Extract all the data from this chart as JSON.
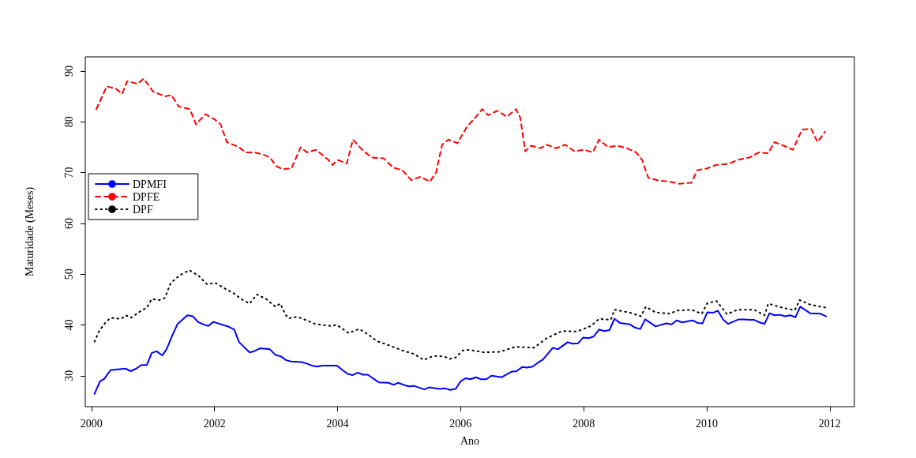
{
  "chart_data": {
    "type": "line",
    "xlabel": "Ano",
    "ylabel": "Maturidade (Meses)",
    "xlim": [
      1999.9,
      2012.4
    ],
    "ylim": [
      23.9,
      92.8
    ],
    "xticks": [
      2000,
      2002,
      2004,
      2006,
      2008,
      2010,
      2012
    ],
    "yticks": [
      30,
      40,
      50,
      60,
      70,
      80,
      90
    ],
    "grid": false,
    "legend": "top left",
    "marker": "none",
    "series": [
      {
        "name": "DPMFI",
        "color": "#0000ff",
        "line_style": "solid",
        "x": [
          2000.05,
          2000.14,
          2000.21,
          2000.31,
          2000.55,
          2000.64,
          2000.73,
          2000.81,
          2000.9,
          2000.98,
          2001.06,
          2001.15,
          2001.22,
          2001.31,
          2001.4,
          2001.56,
          2001.65,
          2001.73,
          2001.82,
          2001.9,
          2001.98,
          2002.24,
          2002.32,
          2002.4,
          2002.57,
          2002.64,
          2002.74,
          2002.9,
          2002.99,
          2003.08,
          2003.16,
          2003.24,
          2003.41,
          2003.5,
          2003.58,
          2003.67,
          2003.75,
          2003.99,
          2004.07,
          2004.16,
          2004.24,
          2004.33,
          2004.41,
          2004.49,
          2004.67,
          2004.83,
          2004.91,
          2004.98,
          2005.15,
          2005.24,
          2005.41,
          2005.49,
          2005.66,
          2005.75,
          2005.83,
          2005.92,
          2006.0,
          2006.08,
          2006.16,
          2006.25,
          2006.33,
          2006.42,
          2006.5,
          2006.67,
          2006.83,
          2006.91,
          2007.0,
          2007.08,
          2007.17,
          2007.25,
          2007.34,
          2007.5,
          2007.58,
          2007.74,
          2007.82,
          2007.91,
          2007.99,
          2008.08,
          2008.16,
          2008.25,
          2008.33,
          2008.42,
          2008.5,
          2008.59,
          2008.75,
          2008.83,
          2008.92,
          2009.0,
          2009.17,
          2009.34,
          2009.43,
          2009.51,
          2009.6,
          2009.77,
          2009.85,
          2009.93,
          2010.01,
          2010.1,
          2010.18,
          2010.27,
          2010.35,
          2010.52,
          2010.61,
          2010.69,
          2010.77,
          2010.86,
          2010.94,
          2011.02,
          2011.1,
          2011.19,
          2011.27,
          2011.36,
          2011.44,
          2011.52,
          2011.68,
          2011.85,
          2011.94
        ],
        "values": [
          26.4,
          28.9,
          29.4,
          31.1,
          31.4,
          30.9,
          31.4,
          32.1,
          32.1,
          34.5,
          34.8,
          34.0,
          35.2,
          37.8,
          40.2,
          41.9,
          41.7,
          40.6,
          40.1,
          39.8,
          40.6,
          39.6,
          39.1,
          36.6,
          34.6,
          34.8,
          35.4,
          35.2,
          34.1,
          33.8,
          33.1,
          32.8,
          32.7,
          32.4,
          32.0,
          31.8,
          32.0,
          32.0,
          31.2,
          30.4,
          30.1,
          30.6,
          30.2,
          30.2,
          28.7,
          28.6,
          28.2,
          28.6,
          27.9,
          28.0,
          27.3,
          27.7,
          27.4,
          27.5,
          27.2,
          27.4,
          28.9,
          29.5,
          29.3,
          29.7,
          29.3,
          29.3,
          30.0,
          29.7,
          30.8,
          30.9,
          31.7,
          31.6,
          31.8,
          32.5,
          33.2,
          35.5,
          35.2,
          36.6,
          36.3,
          36.4,
          37.5,
          37.4,
          37.7,
          39.1,
          38.8,
          39.0,
          41.2,
          40.4,
          40.1,
          39.5,
          39.2,
          41.1,
          39.7,
          40.3,
          40.1,
          40.9,
          40.5,
          40.9,
          40.4,
          40.3,
          42.5,
          42.4,
          42.8,
          41.0,
          40.2,
          41.1,
          41.1,
          41.0,
          41.0,
          40.5,
          40.2,
          42.3,
          41.9,
          42.0,
          41.7,
          41.9,
          41.5,
          43.6,
          42.3,
          42.2,
          41.7
        ]
      },
      {
        "name": "DPFE",
        "color": "#ff0000",
        "line_style": "dashed",
        "x": [
          2000.08,
          2000.25,
          2000.4,
          2000.5,
          2000.58,
          2000.75,
          2000.85,
          2001.0,
          2001.2,
          2001.3,
          2001.42,
          2001.6,
          2001.7,
          2001.85,
          2002.0,
          2002.1,
          2002.2,
          2002.4,
          2002.5,
          2002.65,
          2002.8,
          2002.9,
          2003.0,
          2003.1,
          2003.25,
          2003.4,
          2003.5,
          2003.65,
          2003.75,
          2003.85,
          2003.92,
          2004.0,
          2004.15,
          2004.25,
          2004.4,
          2004.55,
          2004.75,
          2004.9,
          2005.05,
          2005.2,
          2005.35,
          2005.5,
          2005.6,
          2005.7,
          2005.8,
          2005.95,
          2006.1,
          2006.25,
          2006.35,
          2006.45,
          2006.6,
          2006.75,
          2006.9,
          2006.97,
          2007.05,
          2007.15,
          2007.3,
          2007.4,
          2007.55,
          2007.7,
          2007.85,
          2008.0,
          2008.15,
          2008.25,
          2008.4,
          2008.55,
          2008.7,
          2008.85,
          2008.95,
          2009.05,
          2009.2,
          2009.4,
          2009.55,
          2009.75,
          2009.85,
          2010.0,
          2010.15,
          2010.35,
          2010.5,
          2010.7,
          2010.85,
          2011.0,
          2011.1,
          2011.25,
          2011.4,
          2011.55,
          2011.7,
          2011.8,
          2011.92
        ],
        "values": [
          82.5,
          87,
          86.5,
          85.5,
          88,
          87.5,
          88.5,
          86,
          85,
          85.3,
          83,
          82.5,
          79.5,
          81.5,
          80.5,
          79.5,
          76,
          75,
          74,
          74,
          73.5,
          73,
          71.3,
          70.7,
          70.8,
          75,
          74,
          74.5,
          73.5,
          72.5,
          71.5,
          72.5,
          71.8,
          76.5,
          74.5,
          73,
          72.8,
          71,
          70.5,
          68.5,
          69.2,
          68.2,
          70,
          75.5,
          76.5,
          75.8,
          79,
          81,
          82.5,
          81.3,
          82.2,
          81,
          82.5,
          80.8,
          74.2,
          75.3,
          74.8,
          75.5,
          74.8,
          75.5,
          74.2,
          74.5,
          74,
          76.5,
          75,
          75.3,
          74.8,
          74,
          72.5,
          69,
          68.5,
          68.2,
          67.8,
          68,
          70.5,
          70.8,
          71.5,
          71.7,
          72.5,
          73,
          74,
          73.8,
          76,
          75.3,
          74.5,
          78.5,
          78.6,
          76,
          78
        ]
      },
      {
        "name": "DPF",
        "color": "#000000",
        "line_style": "dotted",
        "x": [
          2000.05,
          2000.13,
          2000.23,
          2000.31,
          2000.48,
          2000.56,
          2000.64,
          2000.81,
          2000.9,
          2000.98,
          2001.1,
          2001.19,
          2001.29,
          2001.44,
          2001.59,
          2001.74,
          2001.88,
          2002.01,
          2002.18,
          2002.33,
          2002.42,
          2002.57,
          2002.69,
          2002.84,
          2002.99,
          2003.07,
          2003.15,
          2003.2,
          2003.35,
          2003.52,
          2003.63,
          2003.88,
          2003.99,
          2004.18,
          2004.35,
          2004.49,
          2004.64,
          2004.81,
          2005.07,
          2005.24,
          2005.4,
          2005.56,
          2005.73,
          2005.82,
          2005.92,
          2006.04,
          2006.13,
          2006.38,
          2006.64,
          2006.89,
          2007.19,
          2007.4,
          2007.65,
          2007.89,
          2008.12,
          2008.25,
          2008.44,
          2008.5,
          2008.76,
          2008.93,
          2009.01,
          2009.16,
          2009.41,
          2009.5,
          2009.75,
          2009.92,
          2010.01,
          2010.16,
          2010.33,
          2010.5,
          2010.77,
          2010.94,
          2011.0,
          2011.26,
          2011.43,
          2011.51,
          2011.68,
          2011.94
        ],
        "values": [
          36.7,
          38.9,
          40.5,
          41.4,
          41.2,
          41.9,
          41.4,
          42.8,
          43.4,
          45.1,
          44.9,
          45.3,
          48.3,
          49.8,
          50.8,
          49.7,
          48.0,
          48.3,
          47.1,
          46.1,
          45.2,
          44.2,
          46.0,
          45.1,
          43.6,
          44.2,
          42.1,
          41.3,
          41.6,
          40.8,
          40.2,
          39.8,
          40.0,
          38.4,
          39.2,
          38.2,
          36.8,
          36.1,
          34.9,
          34.3,
          33.1,
          33.9,
          33.8,
          33.3,
          33.6,
          35.0,
          35.1,
          34.6,
          34.7,
          35.7,
          35.5,
          37.4,
          38.8,
          38.7,
          39.8,
          41.2,
          41.0,
          43.0,
          42.4,
          41.7,
          43.6,
          42.5,
          42.2,
          42.8,
          43.0,
          42.2,
          44.3,
          44.7,
          42.1,
          43.0,
          43.0,
          41.9,
          44.2,
          43.3,
          42.9,
          44.9,
          44.0,
          43.4
        ]
      }
    ]
  }
}
